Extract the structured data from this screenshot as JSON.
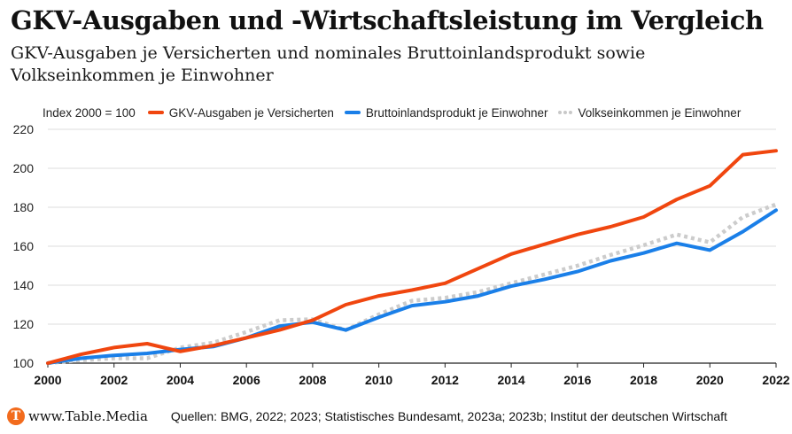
{
  "header": {
    "title": "GKV-Ausgaben und -Wirtschaftsleistung im Vergleich",
    "subtitle": "GKV-Ausgaben je Versicherten und nominales Bruttoinlandsprodukt sowie Volkseinkommen je Einwohner"
  },
  "legend": {
    "note": "Index 2000 = 100"
  },
  "footer": {
    "brand": "www.Table.Media",
    "logo_letter": "T",
    "source": "Quellen: BMG, 2022; 2023; Statistisches Bundesamt, 2023a; 2023b; Institut der deutschen Wirtschaft"
  },
  "colors": {
    "gkv": "#f0460f",
    "bip": "#1a7fe8",
    "volk": "#cccccc",
    "grid": "#dddddd",
    "axis": "#222222",
    "brand": "#f26b1d"
  },
  "chart_data": {
    "type": "line",
    "x": [
      2000,
      2001,
      2002,
      2003,
      2004,
      2005,
      2006,
      2007,
      2008,
      2009,
      2010,
      2011,
      2012,
      2013,
      2014,
      2015,
      2016,
      2017,
      2018,
      2019,
      2020,
      2021,
      2022
    ],
    "xticks": [
      "2000",
      "2002",
      "2004",
      "2006",
      "2008",
      "2010",
      "2012",
      "2014",
      "2016",
      "2018",
      "2020",
      "2022"
    ],
    "yticks": [
      "100",
      "120",
      "140",
      "160",
      "180",
      "200",
      "220"
    ],
    "ylim": [
      100,
      220
    ],
    "xlim": [
      2000,
      2022
    ],
    "grid": true,
    "legend_position": "top",
    "series": [
      {
        "name": "GKV-Ausgaben je Versicherten",
        "style": "solid",
        "color": "#f0460f",
        "values": [
          100,
          104.5,
          108,
          110,
          106,
          109,
          113,
          117,
          122,
          130,
          134.5,
          137.5,
          141,
          148.5,
          156,
          161,
          166,
          170,
          175,
          184,
          191,
          207,
          209
        ]
      },
      {
        "name": "Bruttoinlandsprodukt je Einwohner",
        "style": "solid",
        "color": "#1a7fe8",
        "values": [
          100,
          102.5,
          104,
          105,
          107,
          108.5,
          113,
          119,
          121,
          117,
          123.5,
          129.5,
          131.5,
          134.5,
          139.5,
          143,
          147,
          152.5,
          156.5,
          161.5,
          158,
          167.5,
          178.5
        ]
      },
      {
        "name": "Volkseinkommen je Einwohner",
        "style": "dotted",
        "color": "#cccccc",
        "values": [
          100,
          101.5,
          102.5,
          102.5,
          108,
          110.5,
          116,
          122,
          122.5,
          117,
          125,
          132,
          133.5,
          136.5,
          141,
          145.5,
          150,
          155.5,
          160.5,
          166,
          162,
          175,
          181.5
        ]
      }
    ]
  }
}
